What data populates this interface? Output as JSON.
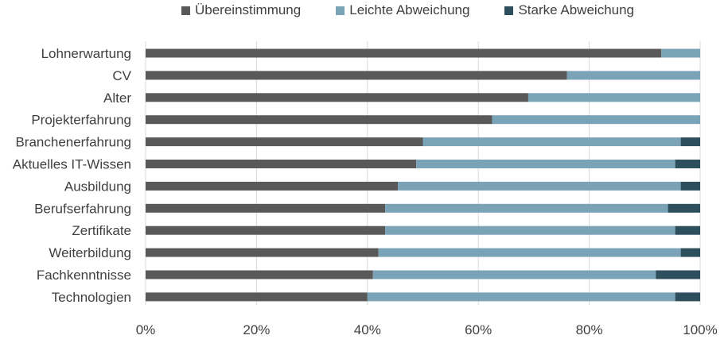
{
  "chart_data": {
    "type": "bar",
    "orientation": "horizontal",
    "stacked": "percent",
    "categories": [
      "Lohnerwartung",
      "CV",
      "Alter",
      "Projekterfahrung",
      "Branchenerfahrung",
      "Aktuelles IT-Wissen",
      "Ausbildung",
      "Berufserfahrung",
      "Zertifikate",
      "Weiterbildung",
      "Fachkenntnisse",
      "Technologien"
    ],
    "series": [
      {
        "name": "Übereinstimmung",
        "color": "#595959",
        "values": [
          93,
          76,
          69,
          62.5,
          50,
          48.8,
          45.5,
          43.2,
          43.2,
          42,
          41,
          40
        ]
      },
      {
        "name": "Leichte Abweichung",
        "color": "#7aa3b8",
        "values": [
          7,
          24,
          31,
          37.5,
          46.5,
          46.7,
          51,
          51,
          52.3,
          54.5,
          51,
          55.5
        ]
      },
      {
        "name": "Starke Abweichung",
        "color": "#2d4e5d",
        "values": [
          0,
          0,
          0,
          0,
          3.5,
          4.5,
          3.5,
          5.8,
          4.5,
          3.5,
          8,
          4.5
        ]
      }
    ],
    "xticks": [
      "0%",
      "20%",
      "40%",
      "60%",
      "80%",
      "100%"
    ],
    "xlim": [
      0,
      100
    ],
    "grid": "vertical",
    "legend_position": "top",
    "title": "",
    "xlabel": "",
    "ylabel": ""
  }
}
